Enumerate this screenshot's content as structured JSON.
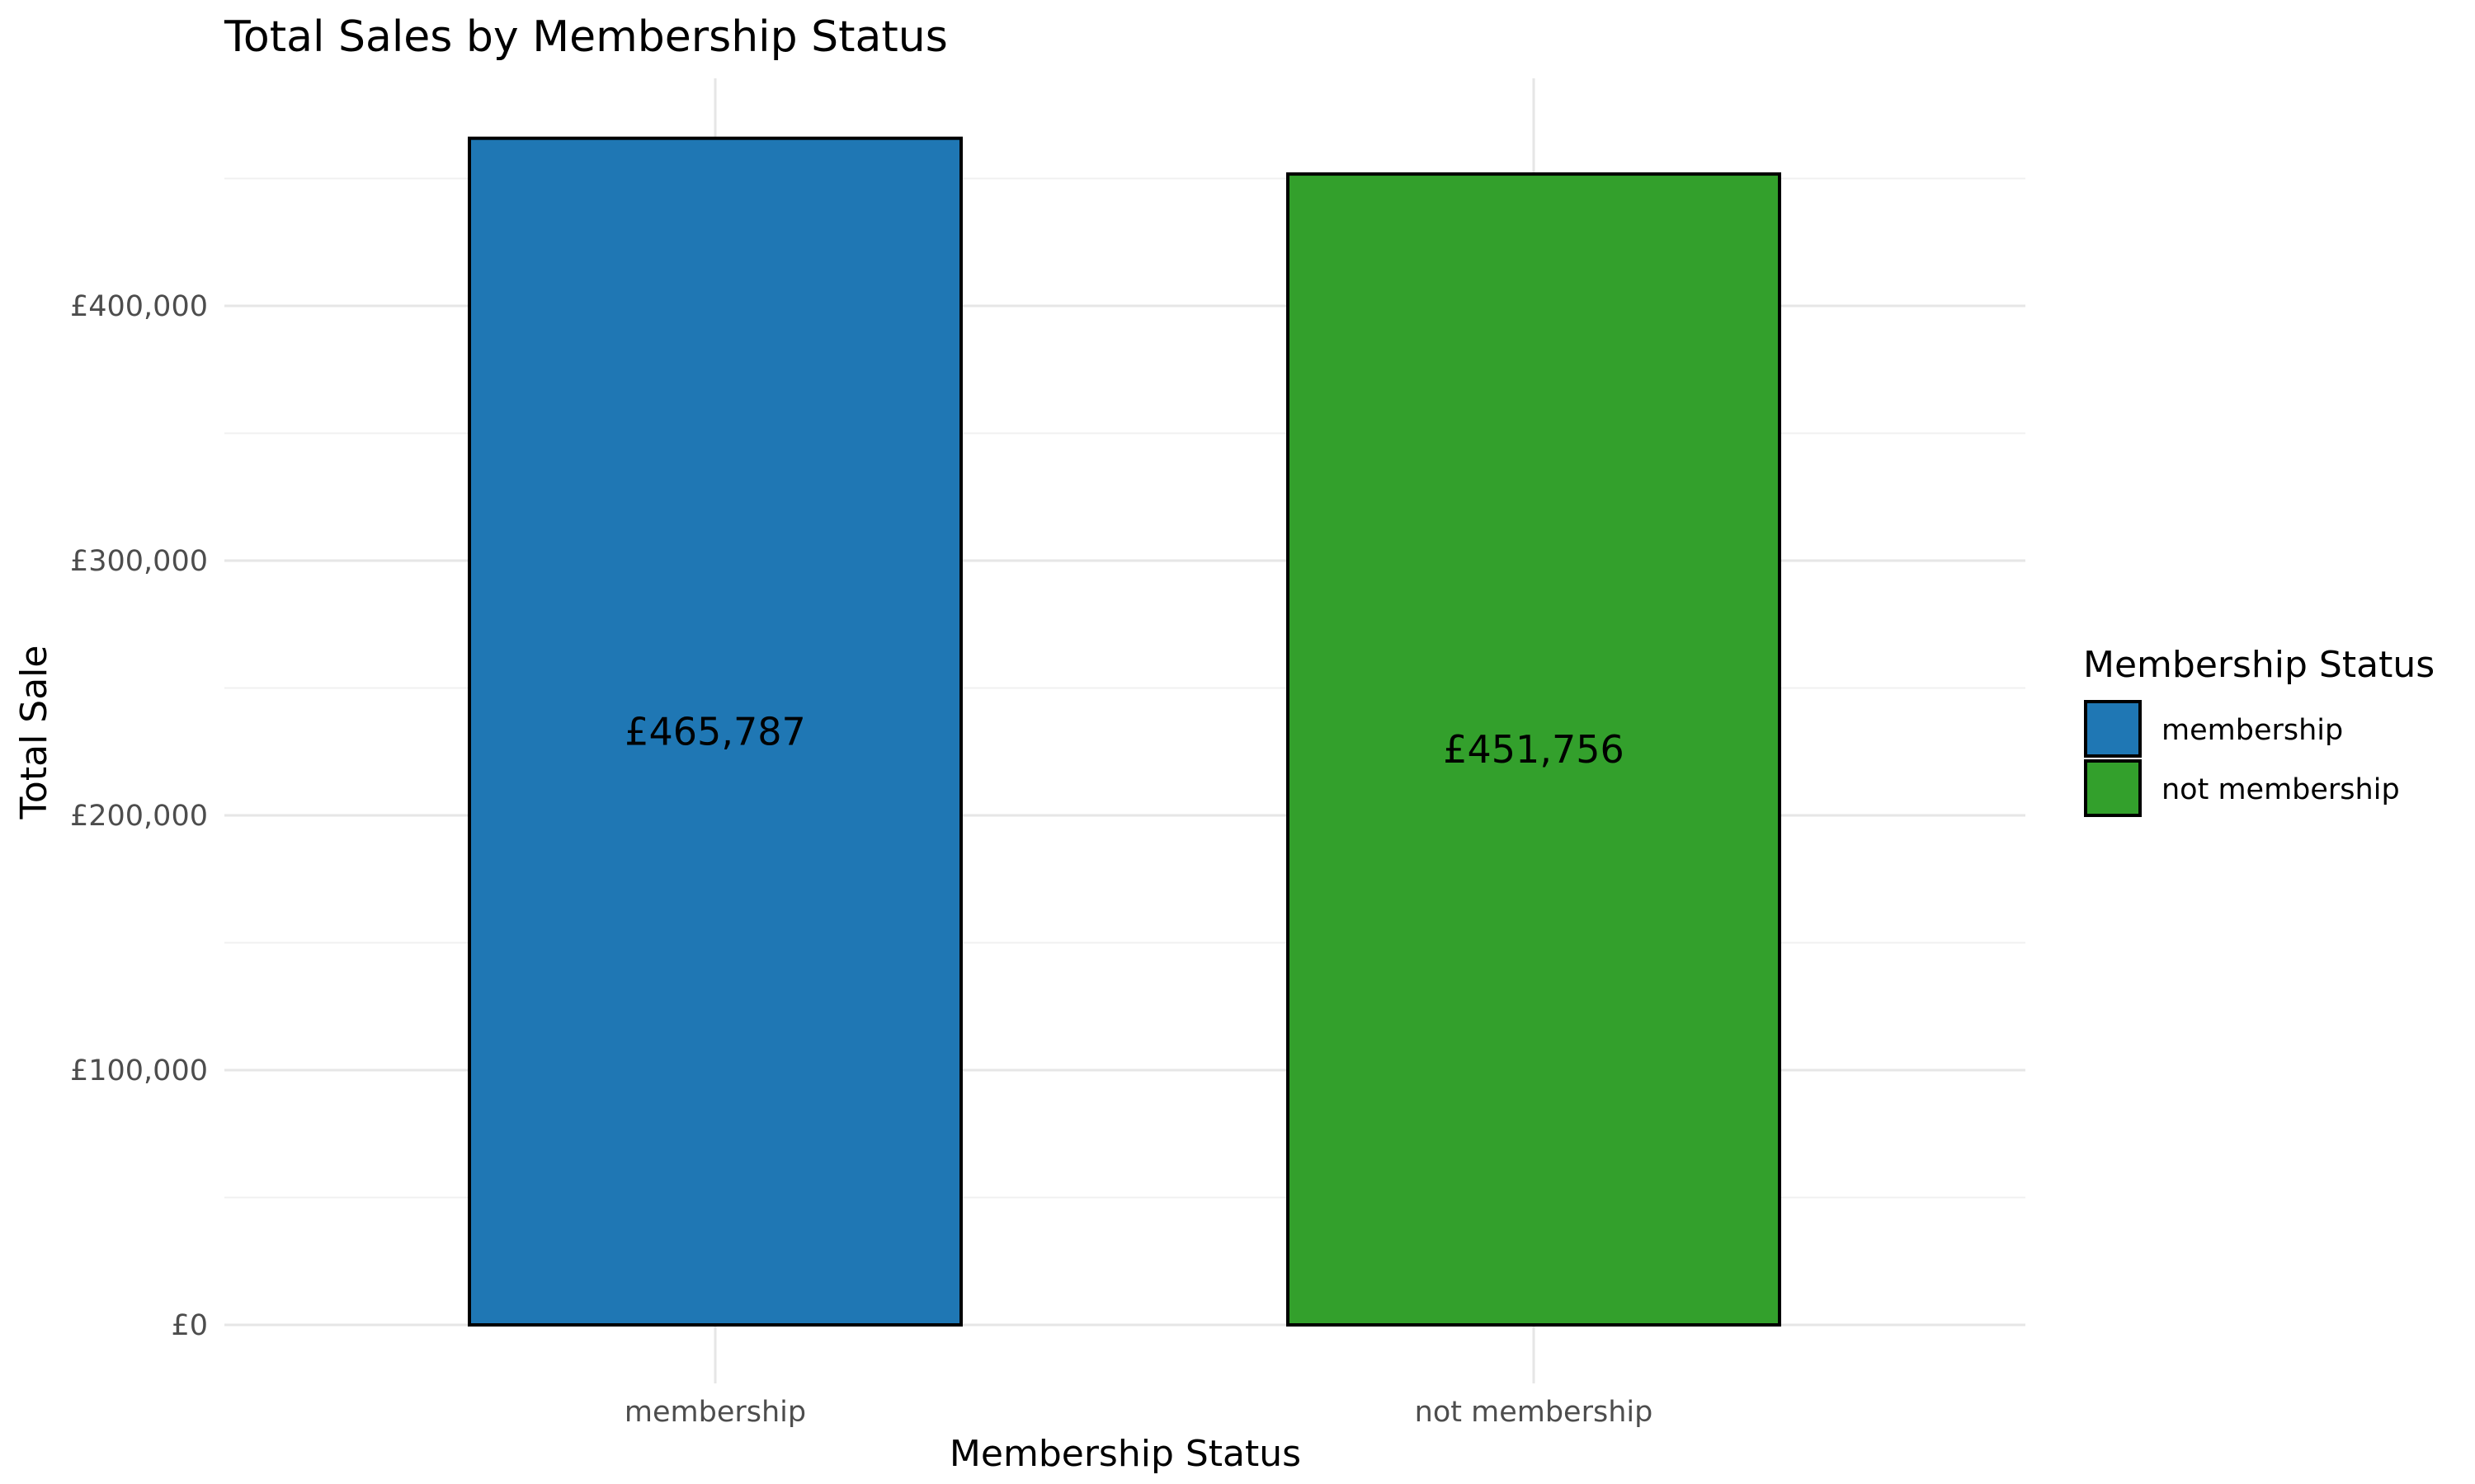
{
  "chart_data": {
    "type": "bar",
    "title": "Total Sales by Membership Status",
    "xlabel": "Membership Status",
    "ylabel": "Total Sale",
    "categories": [
      "membership",
      "not membership"
    ],
    "values": [
      465787,
      451756
    ],
    "data_labels": [
      "£465,787",
      "£451,756"
    ],
    "colors": [
      "#1f77b4",
      "#33a02c"
    ],
    "ylim": [
      0,
      500000
    ],
    "yticks": [
      0,
      100000,
      200000,
      300000,
      400000
    ],
    "ytick_labels": [
      "£0",
      "£100,000",
      "£200,000",
      "£300,000",
      "£400,000"
    ],
    "grid": true,
    "legend": {
      "title": "Membership Status",
      "position": "right",
      "entries": [
        "membership",
        "not membership"
      ]
    }
  }
}
